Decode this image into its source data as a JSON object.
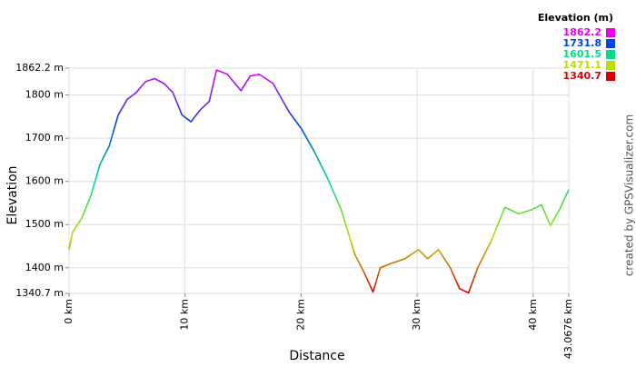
{
  "chart_data": {
    "type": "line",
    "y_label": "Elevation",
    "x_label": "Distance",
    "credit": "created by GPSVisualizer.com",
    "legend": {
      "title": "Elevation (m)",
      "items": [
        {
          "value": 1862.2,
          "color": "#ee00ee"
        },
        {
          "value": 1731.8,
          "color": "#0044ee"
        },
        {
          "value": 1601.5,
          "color": "#00dd88"
        },
        {
          "value": 1471.1,
          "color": "#bbdd00"
        },
        {
          "value": 1340.7,
          "color": "#dd0000"
        }
      ]
    },
    "x": [
      0,
      0.31,
      1.1,
      1.88,
      2.67,
      3.45,
      4.24,
      5.02,
      5.8,
      6.59,
      7.37,
      8.16,
      8.94,
      9.73,
      10.51,
      11.29,
      12.08,
      12.71,
      13.65,
      14.82,
      15.61,
      16.39,
      17.57,
      18.98,
      20.0,
      21.1,
      22.27,
      23.45,
      24.63,
      25.41,
      26.2,
      26.82,
      27.76,
      28.94,
      30.12,
      30.9,
      31.84,
      32.86,
      33.65,
      34.43,
      35.22,
      36.39,
      37.57,
      38.75,
      39.92,
      40.71,
      41.49,
      42.27,
      43.0676
    ],
    "values": [
      1442,
      1483,
      1515,
      1567,
      1640,
      1681,
      1754,
      1790,
      1806,
      1831,
      1838,
      1827,
      1806,
      1754,
      1738,
      1765,
      1785,
      1858,
      1848,
      1810,
      1844,
      1848,
      1827,
      1760,
      1723,
      1671,
      1608,
      1535,
      1431,
      1390,
      1344,
      1400,
      1410,
      1421,
      1442,
      1421,
      1442,
      1400,
      1352,
      1342,
      1400,
      1463,
      1540,
      1525,
      1535,
      1546,
      1498,
      1535,
      1581
    ],
    "xlim": [
      0,
      43.0676
    ],
    "ylim": [
      1340.7,
      1862.2
    ],
    "xticks": [
      {
        "value": 0,
        "label": "0 km"
      },
      {
        "value": 10,
        "label": "10 km"
      },
      {
        "value": 20,
        "label": "20 km"
      },
      {
        "value": 30,
        "label": "30 km"
      },
      {
        "value": 40,
        "label": "40 km"
      },
      {
        "value": 43.0676,
        "label": "43.0676 km"
      }
    ],
    "yticks": [
      {
        "value": 1340.7,
        "label": "1340.7 m"
      },
      {
        "value": 1400,
        "label": "1400 m"
      },
      {
        "value": 1500,
        "label": "1500 m"
      },
      {
        "value": 1600,
        "label": "1600 m"
      },
      {
        "value": 1700,
        "label": "1700 m"
      },
      {
        "value": 1800,
        "label": "1800 m"
      },
      {
        "value": 1862.2,
        "label": "1862.2 m"
      }
    ],
    "grid": true
  }
}
